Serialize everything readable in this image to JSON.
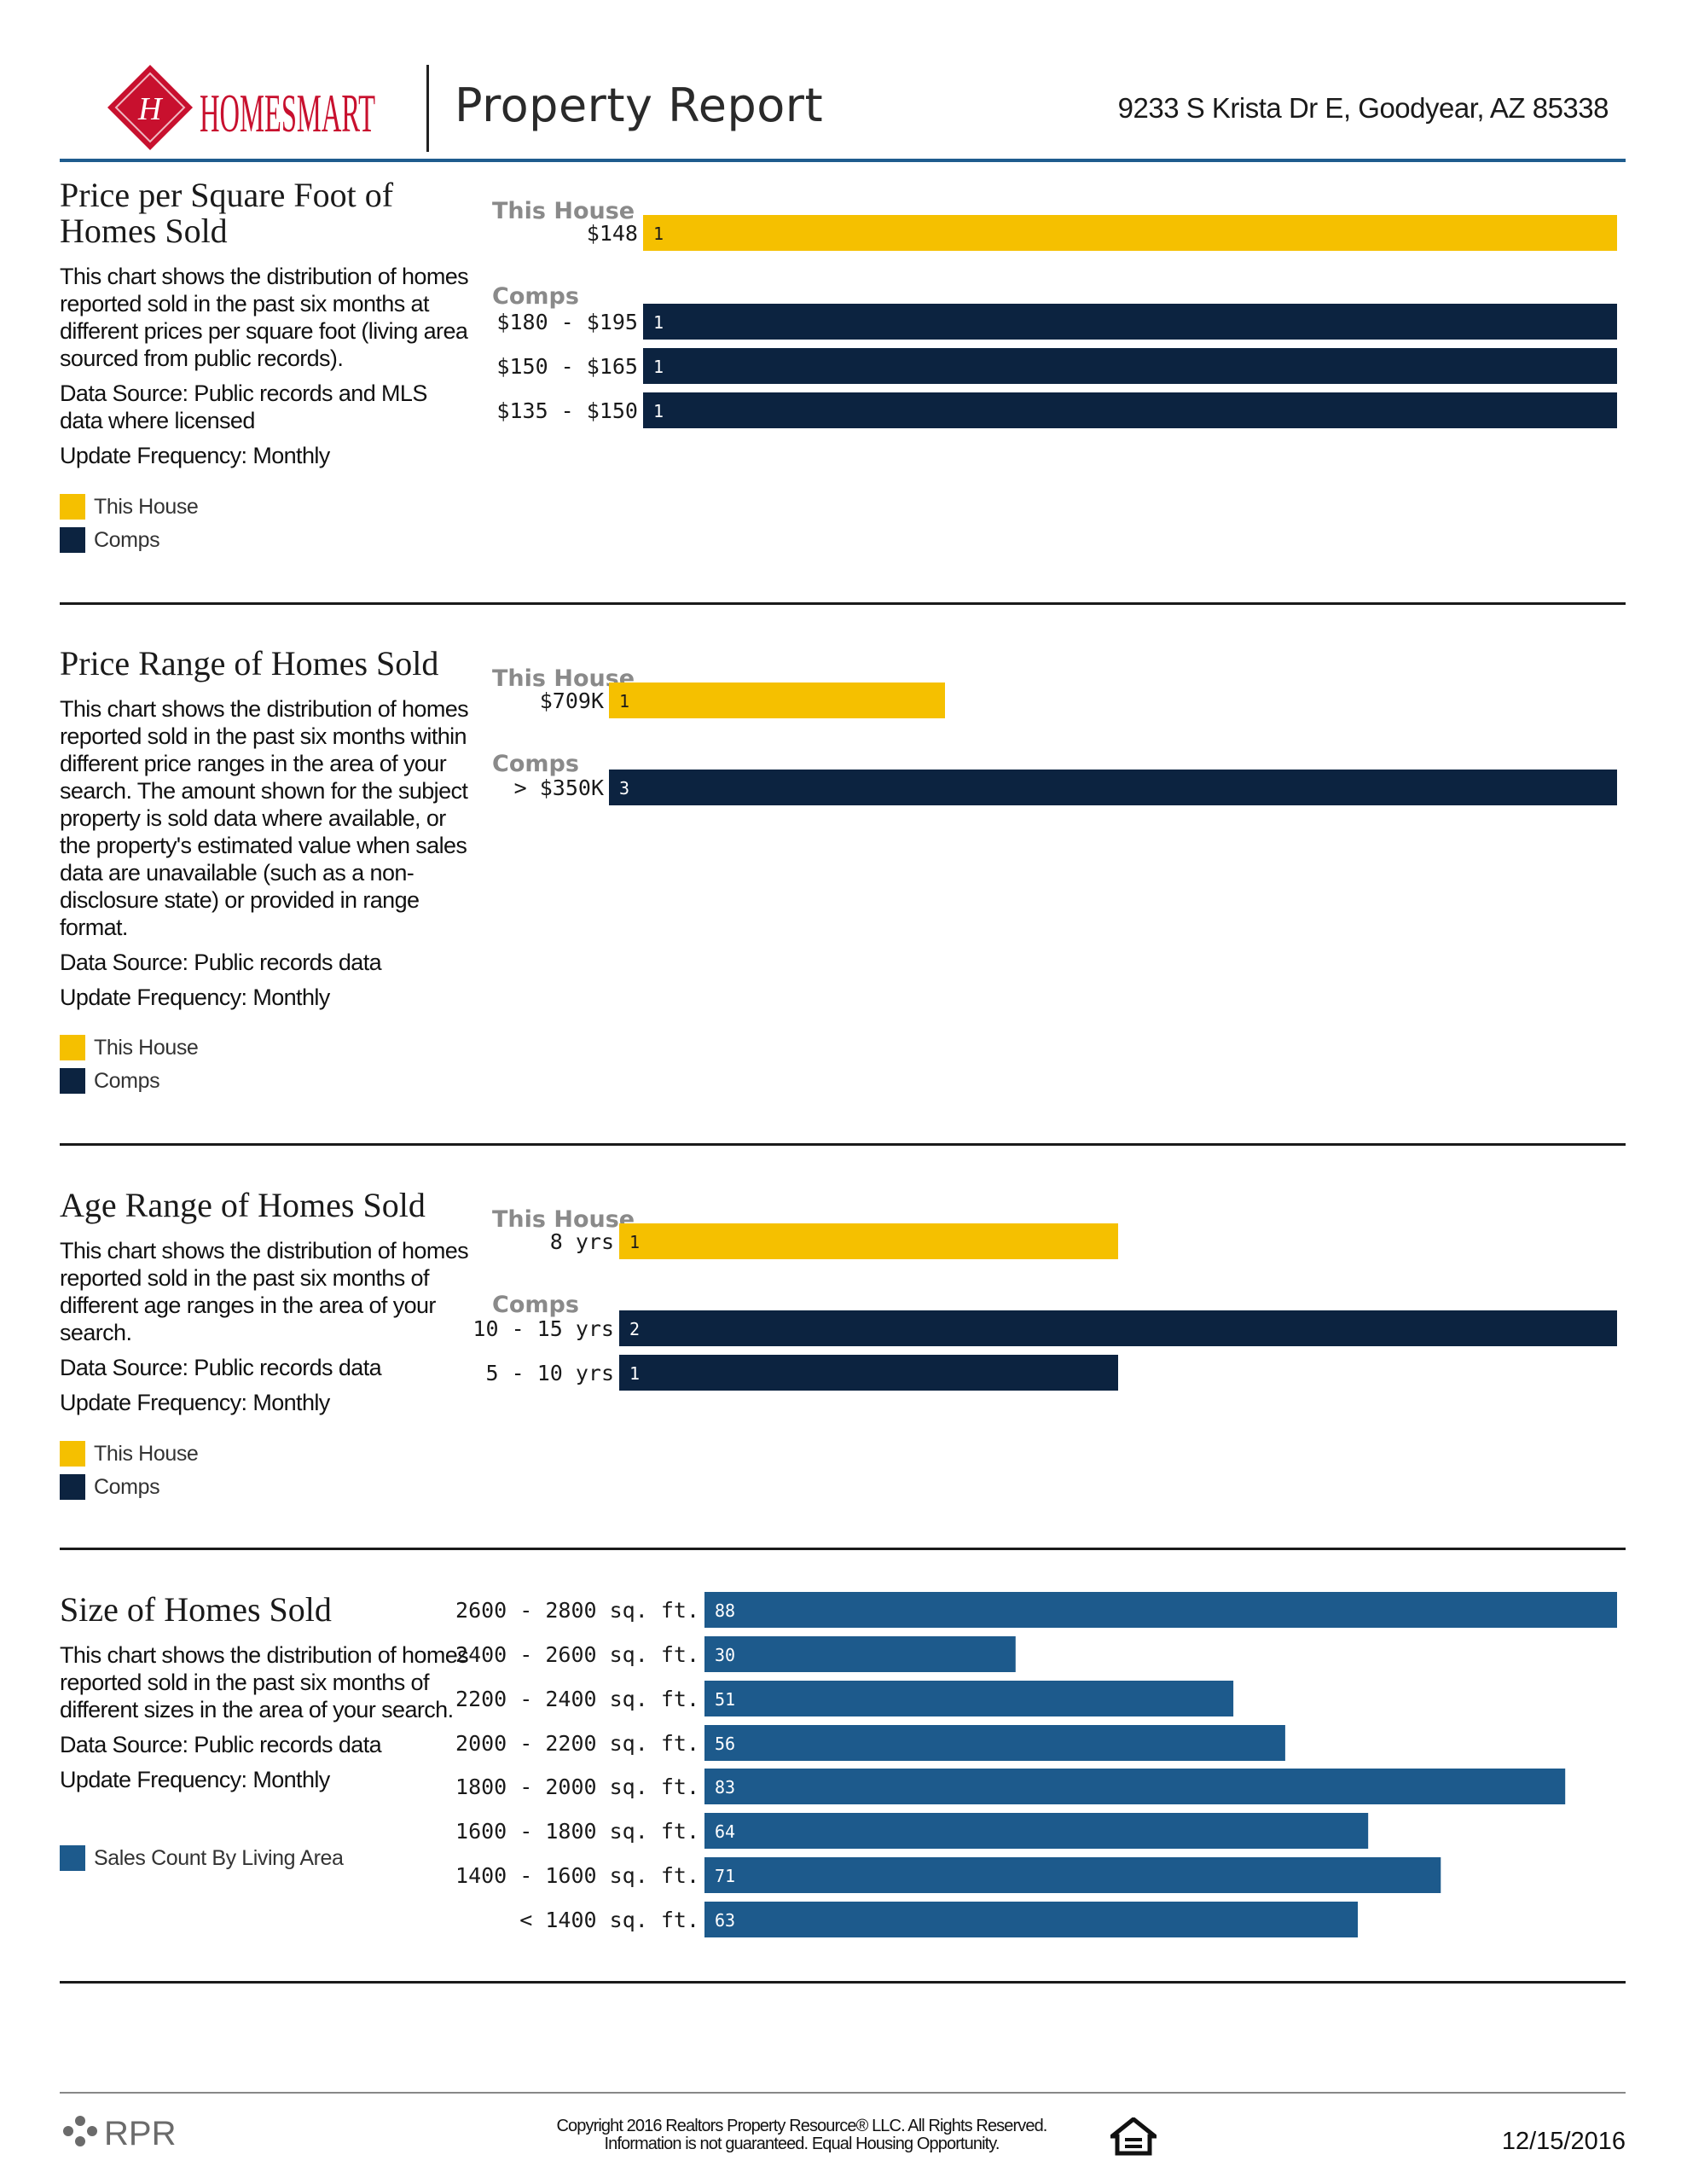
{
  "header": {
    "logo_text": "HOMESMART",
    "report_title": "Property Report",
    "address": "9233 S Krista Dr E, Goodyear, AZ 85338"
  },
  "colors": {
    "this_house": "#f5c000",
    "comps": "#0c2340",
    "size_series": "#1d5a8c",
    "header_rule": "#1f5c8e"
  },
  "sections": [
    {
      "title_line1": "Price per Square Foot of",
      "title_line2": "Homes Sold",
      "description": "This chart shows the distribution of homes reported sold in the past six months at different prices per square foot (living area sourced from public records).",
      "source": "Data Source: Public records and MLS data where licensed",
      "frequency": "Update Frequency: Monthly",
      "legend": [
        {
          "label": "This House",
          "color": "#f5c000"
        },
        {
          "label": "Comps",
          "color": "#0c2340"
        }
      ]
    },
    {
      "title_line1": "Price Range of Homes Sold",
      "title_line2": "",
      "description": "This chart shows the distribution of homes reported sold in the past six months within different price ranges in the area of your search. The amount shown for the subject property is sold data where available, or the property's estimated value when sales data are unavailable (such as a non-disclosure state) or provided in range format.",
      "source": "Data Source: Public records data",
      "frequency": "Update Frequency: Monthly",
      "legend": [
        {
          "label": "This House",
          "color": "#f5c000"
        },
        {
          "label": "Comps",
          "color": "#0c2340"
        }
      ]
    },
    {
      "title_line1": "Age Range of Homes Sold",
      "title_line2": "",
      "description": "This chart shows the distribution of homes reported sold in the past six months of different age ranges in the area of your search.",
      "source": "Data Source: Public records data",
      "frequency": "Update Frequency: Monthly",
      "legend": [
        {
          "label": "This House",
          "color": "#f5c000"
        },
        {
          "label": "Comps",
          "color": "#0c2340"
        }
      ]
    },
    {
      "title_line1": "Size of Homes Sold",
      "title_line2": "",
      "description": "This chart shows the distribution of homes reported sold in the past six months of different sizes in the area of your search.",
      "source": "Data Source: Public records data",
      "frequency": "Update Frequency: Monthly",
      "legend": [
        {
          "label": "Sales Count By Living Area",
          "color": "#1d5a8c"
        }
      ]
    }
  ],
  "chart_data": [
    {
      "type": "bar",
      "orientation": "horizontal",
      "groups": [
        {
          "name": "This House",
          "categories": [
            "$148"
          ],
          "values": [
            1
          ]
        },
        {
          "name": "Comps",
          "categories": [
            "$180 - $195",
            "$150 - $165",
            "$135 - $150"
          ],
          "values": [
            1,
            1,
            1
          ]
        }
      ],
      "xlim": [
        0,
        1
      ]
    },
    {
      "type": "bar",
      "orientation": "horizontal",
      "groups": [
        {
          "name": "This House",
          "categories": [
            "$709K"
          ],
          "values": [
            1
          ]
        },
        {
          "name": "Comps",
          "categories": [
            "> $350K"
          ],
          "values": [
            3
          ]
        }
      ],
      "xlim": [
        0,
        3
      ]
    },
    {
      "type": "bar",
      "orientation": "horizontal",
      "groups": [
        {
          "name": "This House",
          "categories": [
            "8 yrs"
          ],
          "values": [
            1
          ]
        },
        {
          "name": "Comps",
          "categories": [
            "10 - 15 yrs",
            "5 - 10 yrs"
          ],
          "values": [
            2,
            1
          ]
        }
      ],
      "xlim": [
        0,
        2
      ]
    },
    {
      "type": "bar",
      "orientation": "horizontal",
      "groups": [
        {
          "name": "",
          "categories": [
            "2600 - 2800 sq. ft.",
            "2400 - 2600 sq. ft.",
            "2200 - 2400 sq. ft.",
            "2000 - 2200 sq. ft.",
            "1800 - 2000 sq. ft.",
            "1600 - 1800 sq. ft.",
            "1400 - 1600 sq. ft.",
            "< 1400 sq. ft."
          ],
          "values": [
            88,
            30,
            51,
            56,
            83,
            64,
            71,
            63
          ]
        }
      ],
      "series_name": "Sales Count By Living Area",
      "xlim": [
        0,
        88
      ]
    }
  ],
  "footer": {
    "rpr_text": "RPR",
    "copyright_line1": "Copyright 2016 Realtors Property Resource® LLC. All Rights Reserved.",
    "copyright_line2": "Information is not guaranteed. Equal Housing Opportunity.",
    "date": "12/15/2016"
  }
}
